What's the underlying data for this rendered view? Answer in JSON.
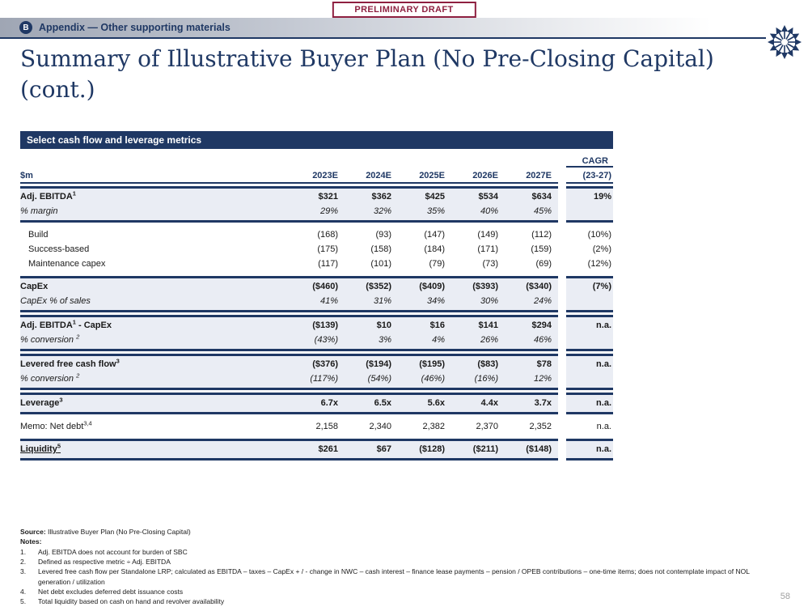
{
  "stamp": {
    "label": "PRELIMINARY DRAFT"
  },
  "header": {
    "badge": "B",
    "label": "Appendix — Other supporting materials"
  },
  "title": {
    "line1": "Summary of Illustrative Buyer Plan (No Pre-Closing Capital)",
    "line2": "(cont.)"
  },
  "colors": {
    "navy": "#1F3864",
    "maroon": "#8E2040",
    "row_shade": "#EAEDF4",
    "page_number_gray": "#A0A0A0"
  },
  "table": {
    "bar_title": "Select cash flow and leverage metrics",
    "unit_label": "$m",
    "year_columns": [
      "2023E",
      "2024E",
      "2025E",
      "2026E",
      "2027E"
    ],
    "cagr_header": "CAGR",
    "cagr_subheader": "(23-27)",
    "groups": [
      {
        "shaded": true,
        "rows": [
          {
            "label": [
              {
                "t": "Adj. EBITDA"
              },
              {
                "s": "1"
              }
            ],
            "style": "bold",
            "cells": [
              "$321",
              "$362",
              "$425",
              "$534",
              "$634"
            ],
            "cagr": "19%",
            "cagr_style": "bold"
          },
          {
            "label": [
              {
                "t": "% margin"
              }
            ],
            "style": "italic",
            "cells": [
              "29%",
              "32%",
              "35%",
              "40%",
              "45%"
            ],
            "cagr": "",
            "cagr_style": ""
          }
        ]
      },
      {
        "shaded": false,
        "rows": [
          {
            "label": [
              {
                "t": "Build"
              }
            ],
            "style": "indent",
            "cells": [
              "(168)",
              "(93)",
              "(147)",
              "(149)",
              "(112)"
            ],
            "cagr": "(10%)",
            "cagr_style": ""
          },
          {
            "label": [
              {
                "t": "Success-based"
              }
            ],
            "style": "indent",
            "cells": [
              "(175)",
              "(158)",
              "(184)",
              "(171)",
              "(159)"
            ],
            "cagr": "(2%)",
            "cagr_style": ""
          },
          {
            "label": [
              {
                "t": "Maintenance capex"
              }
            ],
            "style": "indent",
            "cells": [
              "(117)",
              "(101)",
              "(79)",
              "(73)",
              "(69)"
            ],
            "cagr": "(12%)",
            "cagr_style": ""
          }
        ]
      },
      {
        "shaded": true,
        "rows": [
          {
            "label": [
              {
                "t": "CapEx"
              }
            ],
            "style": "bold",
            "cells": [
              "($460)",
              "($352)",
              "($409)",
              "($393)",
              "($340)"
            ],
            "cagr": "(7%)",
            "cagr_style": "bold"
          },
          {
            "label": [
              {
                "t": "CapEx % of sales"
              }
            ],
            "style": "italic",
            "cells": [
              "41%",
              "31%",
              "34%",
              "30%",
              "24%"
            ],
            "cagr": "",
            "cagr_style": ""
          }
        ]
      },
      {
        "shaded": true,
        "rows": [
          {
            "label": [
              {
                "t": "Adj. EBITDA"
              },
              {
                "s": "1"
              },
              {
                "t": " - CapEx"
              }
            ],
            "style": "bold",
            "cells": [
              "($139)",
              "$10",
              "$16",
              "$141",
              "$294"
            ],
            "cagr": "n.a.",
            "cagr_style": "bold"
          },
          {
            "label": [
              {
                "t": "% conversion "
              },
              {
                "s": "2"
              }
            ],
            "style": "italic",
            "cells": [
              "(43%)",
              "3%",
              "4%",
              "26%",
              "46%"
            ],
            "cagr": "",
            "cagr_style": ""
          }
        ]
      },
      {
        "shaded": true,
        "rows": [
          {
            "label": [
              {
                "t": "Levered free cash flow"
              },
              {
                "s": "3"
              }
            ],
            "style": "bold",
            "cells": [
              "($376)",
              "($194)",
              "($195)",
              "($83)",
              "$78"
            ],
            "cagr": "n.a.",
            "cagr_style": "bold"
          },
          {
            "label": [
              {
                "t": "% conversion "
              },
              {
                "s": "2"
              }
            ],
            "style": "italic",
            "cells": [
              "(117%)",
              "(54%)",
              "(46%)",
              "(16%)",
              "12%"
            ],
            "cagr": "",
            "cagr_style": ""
          }
        ]
      },
      {
        "shaded": true,
        "rows": [
          {
            "label": [
              {
                "t": "Leverage"
              },
              {
                "s": "3"
              }
            ],
            "style": "bold",
            "cells": [
              "6.7x",
              "6.5x",
              "5.6x",
              "4.4x",
              "3.7x"
            ],
            "cagr": "n.a.",
            "cagr_style": "bold"
          }
        ]
      },
      {
        "shaded": false,
        "rows": [
          {
            "label": [
              {
                "t": "Memo: Net debt"
              },
              {
                "s": "3,4"
              }
            ],
            "style": "",
            "cells": [
              "2,158",
              "2,340",
              "2,382",
              "2,370",
              "2,352"
            ],
            "cagr": "n.a.",
            "cagr_style": ""
          }
        ]
      },
      {
        "shaded": true,
        "rows": [
          {
            "label": [
              {
                "t": "Liquidity"
              },
              {
                "s": "5"
              }
            ],
            "style": "bold underline",
            "cells": [
              "$261",
              "$67",
              "($128)",
              "($211)",
              "($148)"
            ],
            "cagr": "n.a.",
            "cagr_style": "bold"
          }
        ]
      }
    ]
  },
  "footer": {
    "source_label": "Source:",
    "source_text": "Illustrative Buyer Plan (No Pre-Closing Capital)",
    "notes_label": "Notes:",
    "notes": [
      "Adj. EBITDA does not account for burden of SBC",
      "Defined as respective metric ÷ Adj. EBITDA",
      "Levered free cash flow per Standalone LRP; calculated as EBITDA – taxes – CapEx + / - change in NWC – cash interest – finance lease payments – pension / OPEB contributions – one-time items; does not contemplate impact of NOL generation / utilization",
      "Net debt excludes deferred debt issuance costs",
      "Total liquidity based on cash on hand and revolver availability"
    ]
  },
  "page_number": "58"
}
